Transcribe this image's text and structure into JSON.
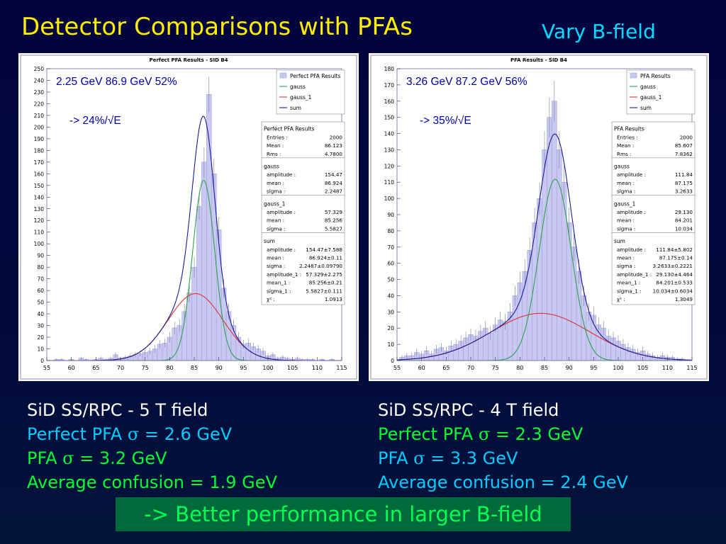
{
  "slide": {
    "title": "Detector Comparisons with PFAs",
    "subtitle": "Vary B-field",
    "conclusion": "-> Better performance in larger B-field",
    "colors": {
      "title": "#ffee00",
      "subtitle": "#00ddff",
      "conclusion_bg": "#006a3a",
      "conclusion_text": "#00ff55"
    }
  },
  "captions": [
    {
      "l1": "SiD SS/RPC - 5 T field",
      "l2a": "Perfect PFA ",
      "l2b": "σ",
      "l2c": " = 2.6 GeV",
      "l3a": "PFA ",
      "l3b": "σ",
      "l3c": " = 3.2 GeV",
      "l4": "Average confusion = 1.9 GeV"
    },
    {
      "l1": "SiD SS/RPC - 4 T field",
      "l2a": "Perfect PFA ",
      "l2b": "σ",
      "l2c": " = 2.3 GeV",
      "l3a": "PFA ",
      "l3b": "σ",
      "l3c": " = 3.3 GeV",
      "l4": "Average confusion = 2.4 GeV"
    }
  ],
  "chart_data": [
    {
      "type": "bar",
      "title": "Perfect PFA Results - SID B4",
      "annotation_1": "2.25 GeV  86.9 GeV 52%",
      "annotation_2": "-> 24%/√E",
      "xlim": [
        55,
        115
      ],
      "ylim": [
        0,
        250
      ],
      "xticks": [
        55,
        60,
        65,
        70,
        75,
        80,
        85,
        90,
        95,
        100,
        105,
        110,
        115
      ],
      "yticks": [
        0,
        10,
        20,
        30,
        40,
        50,
        60,
        70,
        80,
        90,
        100,
        110,
        120,
        130,
        140,
        150,
        160,
        170,
        180,
        190,
        200,
        210,
        220,
        230,
        240,
        250
      ],
      "legend": [
        "Perfect PFA Results",
        "gauss",
        "gauss_1",
        "sum"
      ],
      "series_colors": {
        "hist": "#c8c8f2",
        "gauss": "#2aa24a",
        "gauss_1": "#e03030",
        "sum": "#1a1a9a"
      },
      "gauss": {
        "amplitude": 154.47,
        "mean": 86.924,
        "sigma": 2.2487
      },
      "gauss_1": {
        "amplitude": 57.329,
        "mean": 85.256,
        "sigma": 5.5827
      },
      "hist_x": [
        57,
        58,
        59,
        60,
        61,
        62,
        63,
        64,
        65,
        66,
        67,
        68,
        69,
        70,
        71,
        72,
        73,
        74,
        75,
        76,
        77,
        78,
        79,
        80,
        81,
        82,
        83,
        84,
        85,
        86,
        87,
        88,
        89,
        90,
        91,
        92,
        93,
        94,
        95,
        96,
        97,
        98,
        99,
        100,
        101,
        102,
        103,
        104,
        105,
        106,
        107,
        108,
        109,
        110,
        111,
        112,
        113
      ],
      "hist_y": [
        1,
        1,
        0,
        1,
        0,
        2,
        1,
        0,
        1,
        2,
        1,
        2,
        5,
        2,
        3,
        4,
        5,
        6,
        7,
        8,
        10,
        14,
        15,
        20,
        28,
        30,
        42,
        58,
        80,
        132,
        170,
        228,
        160,
        112,
        62,
        42,
        30,
        20,
        14,
        15,
        12,
        10,
        8,
        4,
        5,
        2,
        3,
        2,
        1,
        2,
        1,
        1,
        1,
        0,
        1,
        0,
        1
      ],
      "stats": {
        "header": "Perfect PFA Results",
        "rows": [
          [
            "Entries :",
            "2000"
          ],
          [
            "Mean :",
            "86.123"
          ],
          [
            "Rms :",
            "4.7800"
          ]
        ],
        "gauss_header": "gauss",
        "gauss_rows": [
          [
            "amplitude :",
            "154.47"
          ],
          [
            "mean :",
            "86.924"
          ],
          [
            "sigma :",
            "2.2487"
          ]
        ],
        "gauss1_header": "gauss_1",
        "gauss1_rows": [
          [
            "amplitude :",
            "57.329"
          ],
          [
            "mean :",
            "85.256"
          ],
          [
            "sigma :",
            "5.5827"
          ]
        ],
        "sum_header": "sum",
        "sum_rows": [
          [
            "amplitude :",
            "154.47±7.588"
          ],
          [
            "mean :",
            "86.924±0.11"
          ],
          [
            "sigma :",
            "2.2487±0.09790"
          ],
          [
            "amplitude_1 :",
            "57.329±2.275"
          ],
          [
            "mean_1 :",
            "85.256±0.21"
          ],
          [
            "sigma_1 :",
            "5.5827±0.111"
          ],
          [
            "χ² :",
            "1.0913"
          ]
        ]
      }
    },
    {
      "type": "bar",
      "title": "PFA Results - SID B4",
      "annotation_1": "3.26 GeV  87.2 GeV 56%",
      "annotation_2": "-> 35%/√E",
      "xlim": [
        55,
        115
      ],
      "ylim": [
        0,
        180
      ],
      "xticks": [
        55,
        60,
        65,
        70,
        75,
        80,
        85,
        90,
        95,
        100,
        105,
        110,
        115
      ],
      "yticks": [
        0,
        10,
        20,
        30,
        40,
        50,
        60,
        70,
        80,
        90,
        100,
        110,
        120,
        130,
        140,
        150,
        160,
        170,
        180
      ],
      "legend": [
        "PFA Results",
        "gauss",
        "gauss_1",
        "sum"
      ],
      "series_colors": {
        "hist": "#c8c8f2",
        "gauss": "#2aa24a",
        "gauss_1": "#e03030",
        "sum": "#1a1a9a"
      },
      "gauss": {
        "amplitude": 111.84,
        "mean": 87.175,
        "sigma": 3.2633
      },
      "gauss_1": {
        "amplitude": 29.13,
        "mean": 84.201,
        "sigma": 10.034
      },
      "hist_x": [
        56,
        57,
        58,
        59,
        60,
        61,
        62,
        63,
        64,
        65,
        66,
        67,
        68,
        69,
        70,
        71,
        72,
        73,
        74,
        75,
        76,
        77,
        78,
        79,
        80,
        81,
        82,
        83,
        84,
        85,
        86,
        87,
        88,
        89,
        90,
        91,
        92,
        93,
        94,
        95,
        96,
        97,
        98,
        99,
        100,
        101,
        102,
        103,
        104,
        105,
        106,
        107,
        108,
        109,
        110,
        111,
        112,
        113,
        114
      ],
      "hist_y": [
        2,
        3,
        3,
        5,
        4,
        6,
        4,
        7,
        8,
        6,
        9,
        10,
        12,
        14,
        16,
        15,
        18,
        20,
        17,
        22,
        25,
        24,
        30,
        40,
        48,
        55,
        68,
        85,
        100,
        130,
        150,
        160,
        130,
        110,
        85,
        70,
        55,
        40,
        30,
        28,
        22,
        20,
        15,
        14,
        12,
        10,
        8,
        7,
        5,
        6,
        4,
        3,
        2,
        3,
        2,
        2,
        1,
        1,
        0
      ],
      "stats": {
        "header": "PFA Results",
        "rows": [
          [
            "Entries :",
            "2000"
          ],
          [
            "Mean :",
            "85.607"
          ],
          [
            "Rms :",
            "7.8362"
          ]
        ],
        "gauss_header": "gauss",
        "gauss_rows": [
          [
            "amplitude :",
            "111.84"
          ],
          [
            "mean :",
            "87.175"
          ],
          [
            "sigma :",
            "3.2633"
          ]
        ],
        "gauss1_header": "gauss_1",
        "gauss1_rows": [
          [
            "amplitude :",
            "29.130"
          ],
          [
            "mean :",
            "84.201"
          ],
          [
            "sigma :",
            "10.034"
          ]
        ],
        "sum_header": "sum",
        "sum_rows": [
          [
            "amplitude :",
            "111.84±5.802"
          ],
          [
            "mean :",
            "87.175±0.14"
          ],
          [
            "sigma :",
            "3.2633±0.2221"
          ],
          [
            "amplitude_1 :",
            "29.130±4.464"
          ],
          [
            "mean_1 :",
            "84.201±0.533"
          ],
          [
            "sigma_1 :",
            "10.034±0.6034"
          ],
          [
            "χ² :",
            "1.3049"
          ]
        ]
      }
    }
  ]
}
